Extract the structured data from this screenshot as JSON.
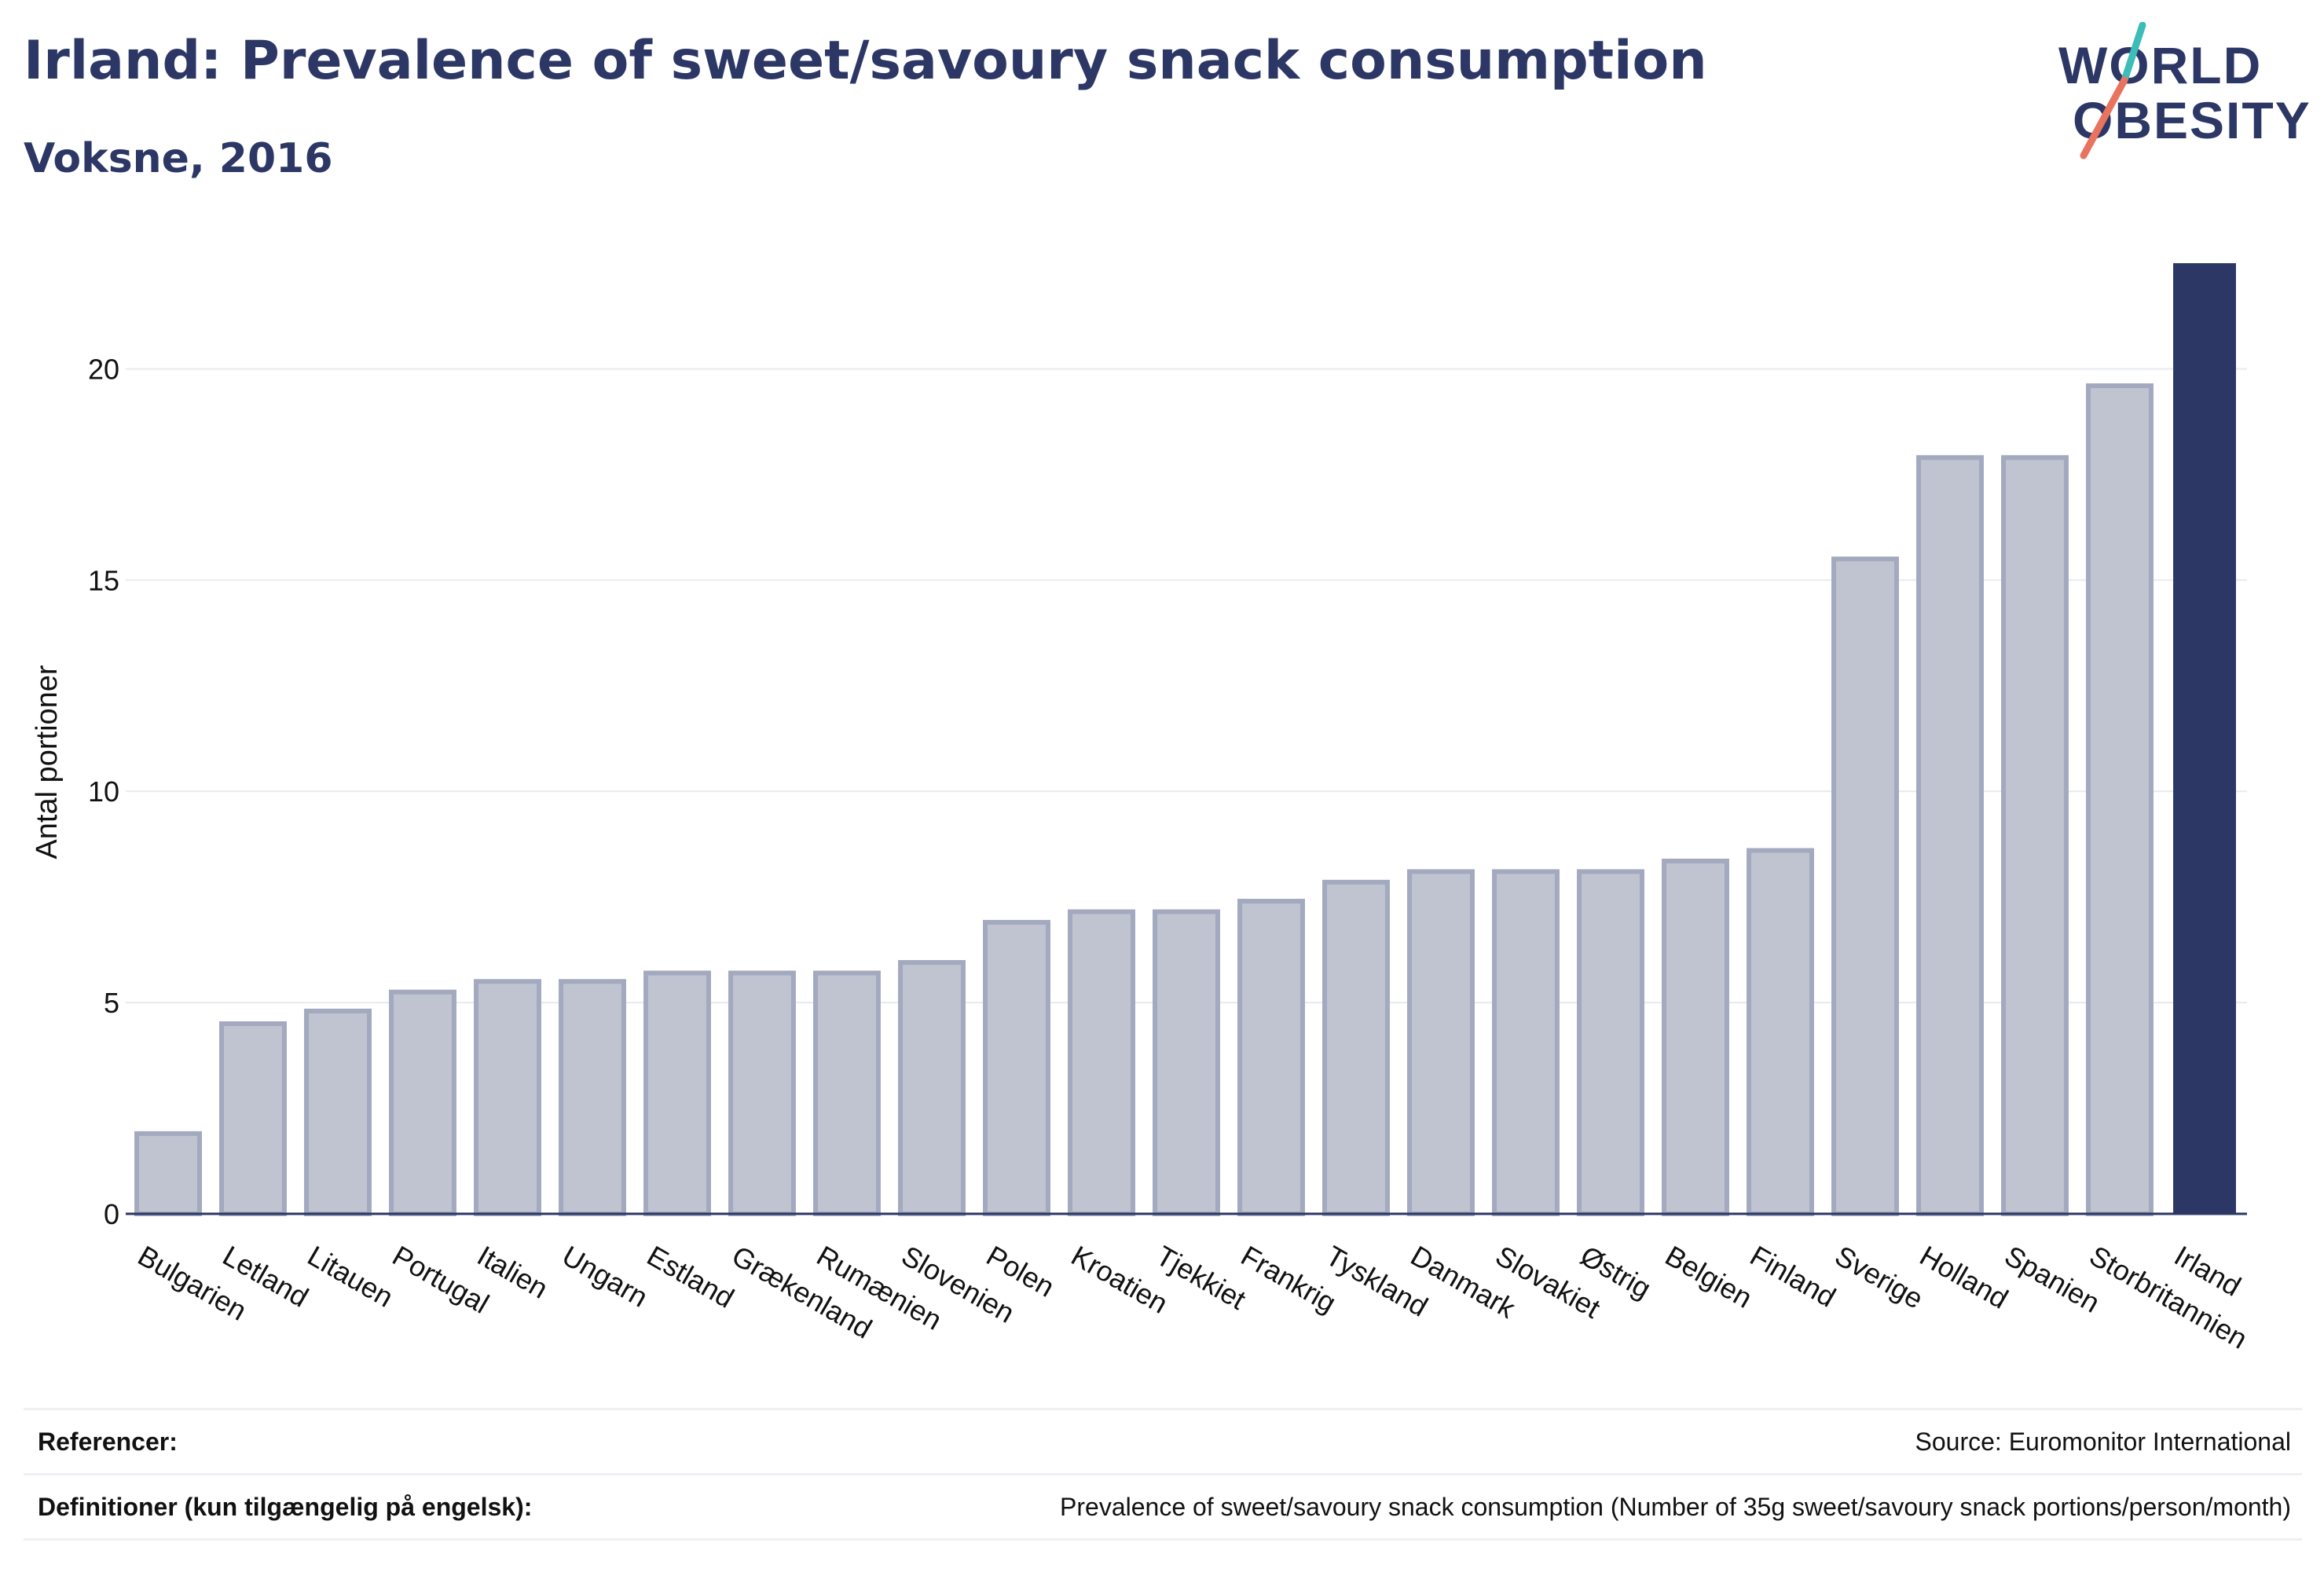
{
  "header": {
    "title": "Irland: Prevalence of sweet/savoury snack consumption",
    "subtitle": "Voksne, 2016"
  },
  "logo": {
    "line1": "WORLD",
    "line2": "OBESITY",
    "accent_teal": "#3dbdb8",
    "accent_coral": "#e8735f",
    "text_color": "#2c3766"
  },
  "chart_data": {
    "type": "bar",
    "categories": [
      "Bulgarien",
      "Letland",
      "Litauen",
      "Portugal",
      "Italien",
      "Ungarn",
      "Estland",
      "Grækenland",
      "Rumænien",
      "Slovenien",
      "Polen",
      "Kroatien",
      "Tjekkiet",
      "Frankrig",
      "Tyskland",
      "Danmark",
      "Slovakiet",
      "Østrig",
      "Belgien",
      "Finland",
      "Sverige",
      "Holland",
      "Spanien",
      "Storbritannien",
      "Irland"
    ],
    "values": [
      1.9,
      4.5,
      4.8,
      5.25,
      5.5,
      5.5,
      5.7,
      5.7,
      5.7,
      5.95,
      6.9,
      7.15,
      7.15,
      7.4,
      7.85,
      8.1,
      8.1,
      8.1,
      8.35,
      8.6,
      15.5,
      17.9,
      17.9,
      19.6,
      22.5
    ],
    "highlight": "Irland",
    "ylabel": "Antal portioner",
    "xlabel": "",
    "ylim": [
      0,
      22.5
    ],
    "yticks": [
      0,
      5,
      10,
      15,
      20
    ],
    "grid": true,
    "colors": {
      "bar": "#c0c4d1",
      "bar_border": "#a3a9be",
      "highlight": "#2c3766",
      "grid": "#e8eaee",
      "axis": "#2c3766"
    }
  },
  "footer": {
    "references_label": "Referencer:",
    "references_value": "Source: Euromonitor International",
    "definitions_label": "Definitioner (kun tilgængelig på engelsk):",
    "definitions_value": "Prevalence of sweet/savoury snack consumption (Number of 35g sweet/savoury snack portions/person/month)"
  }
}
